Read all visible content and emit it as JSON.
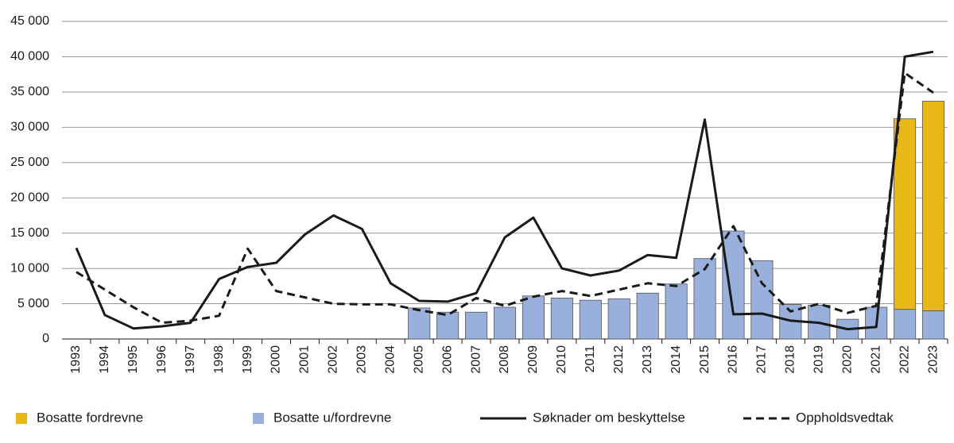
{
  "chart_data": {
    "type": "bar-line",
    "categories": [
      "1993",
      "1994",
      "1995",
      "1996",
      "1997",
      "1998",
      "1999",
      "2000",
      "2001",
      "2002",
      "2003",
      "2004",
      "2005",
      "2006",
      "2007",
      "2008",
      "2009",
      "2010",
      "2011",
      "2012",
      "2013",
      "2014",
      "2015",
      "2016",
      "2017",
      "2018",
      "2019",
      "2020",
      "2021",
      "2022",
      "2023"
    ],
    "series": [
      {
        "name": "Bosatte u/fordrevne",
        "type": "bar",
        "color": "#99b0dd",
        "values": [
          null,
          null,
          null,
          null,
          null,
          null,
          null,
          null,
          null,
          null,
          null,
          null,
          4400,
          3800,
          3800,
          4500,
          6100,
          5800,
          5500,
          5700,
          6500,
          7800,
          11400,
          15300,
          11100,
          4900,
          4800,
          2800,
          4500,
          4200,
          4000
        ]
      },
      {
        "name": "Bosatte fordrevne",
        "type": "bar",
        "color": "#e8b818",
        "values": [
          null,
          null,
          null,
          null,
          null,
          null,
          null,
          null,
          null,
          null,
          null,
          null,
          null,
          null,
          null,
          null,
          null,
          null,
          null,
          null,
          null,
          null,
          null,
          null,
          null,
          null,
          null,
          null,
          null,
          27000,
          29700
        ]
      },
      {
        "name": "Søknader om beskyttelse",
        "type": "line",
        "color": "#1a1a1a",
        "dashed": false,
        "values": [
          12900,
          3400,
          1500,
          1800,
          2300,
          8500,
          10200,
          10800,
          14800,
          17500,
          15600,
          7900,
          5400,
          5300,
          6500,
          14400,
          17200,
          10000,
          9000,
          9700,
          11900,
          11500,
          31100,
          3500,
          3600,
          2600,
          2300,
          1400,
          1700,
          40000,
          40700
        ]
      },
      {
        "name": "Oppholdsvedtak",
        "type": "line",
        "color": "#1a1a1a",
        "dashed": true,
        "values": [
          9500,
          7000,
          4500,
          2300,
          2600,
          3300,
          12800,
          6800,
          5900,
          5000,
          4900,
          4900,
          4100,
          3400,
          5800,
          4700,
          6000,
          6800,
          6100,
          7000,
          7900,
          7500,
          9900,
          16000,
          7900,
          3900,
          5000,
          3700,
          4700,
          37700,
          34900
        ]
      }
    ],
    "legend_order": [
      1,
      0,
      2,
      3
    ],
    "ylim": [
      0,
      45000
    ],
    "yticks": [
      0,
      {
        "value": 5000,
        "label": "5 000"
      },
      {
        "value": 10000,
        "label": "10 000"
      },
      {
        "value": 15000,
        "label": "15 000"
      },
      {
        "value": 20000,
        "label": "20 000"
      },
      {
        "value": 25000,
        "label": "25 000"
      },
      {
        "value": 30000,
        "label": "30 000"
      },
      {
        "value": 35000,
        "label": "35 000"
      },
      {
        "value": 40000,
        "label": "40 000"
      },
      {
        "value": 45000,
        "label": "45 000"
      }
    ],
    "grid": true
  }
}
